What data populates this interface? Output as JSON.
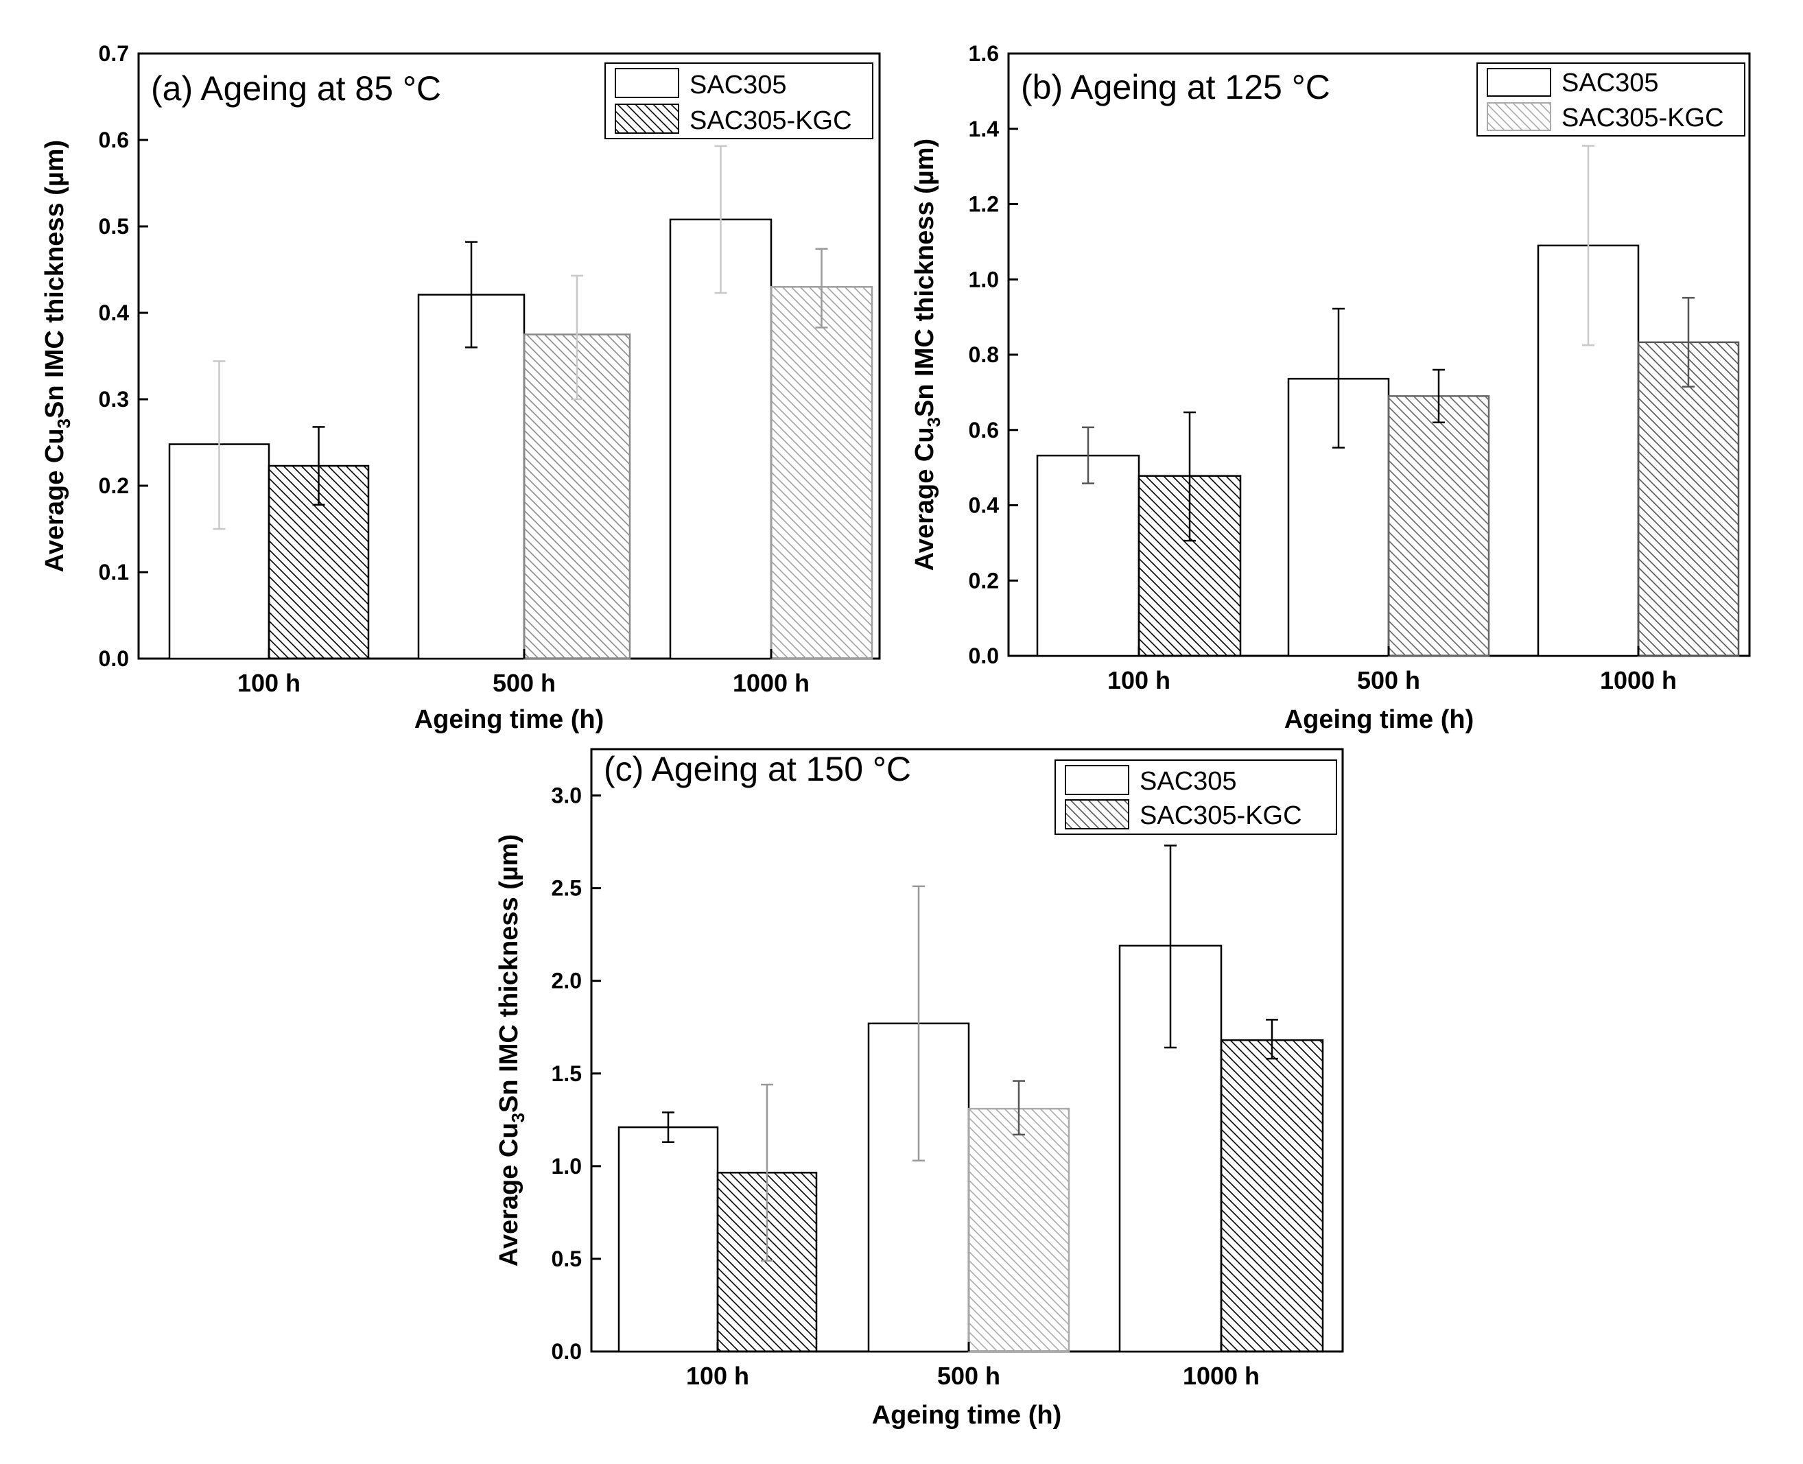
{
  "chart_data": [
    {
      "type": "bar",
      "panel": "a",
      "title": "(a)  Ageing at 85 °C",
      "xlabel": "Ageing time (h)",
      "ylabel_prefix": "Average Cu",
      "ylabel_sub": "3",
      "ylabel_suffix": "Sn IMC thickness (µm)",
      "categories": [
        "100 h",
        "500 h",
        "1000 h"
      ],
      "ylim": [
        0,
        0.7
      ],
      "yticks": [
        0.0,
        0.1,
        0.2,
        0.3,
        0.4,
        0.5,
        0.6,
        0.7
      ],
      "ytick_labels": [
        "0.0",
        "0.1",
        "0.2",
        "0.3",
        "0.4",
        "0.5",
        "0.6",
        "0.7"
      ],
      "legend_position": "top-right",
      "series": [
        {
          "name": "SAC305",
          "pattern": "none",
          "values": [
            0.248,
            0.421,
            0.508
          ],
          "err_low": [
            0.15,
            0.36,
            0.423
          ],
          "err_high": [
            0.344,
            0.482,
            0.593
          ],
          "err_colors": [
            "#c8c8c8",
            "#000000",
            "#c8c8c8"
          ]
        },
        {
          "name": "SAC305-KGC",
          "pattern": "hatch",
          "values": [
            0.223,
            0.375,
            0.43
          ],
          "err_low": [
            0.178,
            0.3,
            0.383
          ],
          "err_high": [
            0.268,
            0.443,
            0.474
          ],
          "err_colors": [
            "#000000",
            "#c8c8c8",
            "#999999"
          ],
          "hatch_shades": [
            "#000000",
            "#8a8a8a",
            "#a0a0a0"
          ]
        }
      ]
    },
    {
      "type": "bar",
      "panel": "b",
      "title": "(b) Ageing at 125 °C",
      "xlabel": "Ageing time (h)",
      "ylabel_prefix": "Average Cu",
      "ylabel_sub": "3",
      "ylabel_suffix": "Sn IMC thickness (µm)",
      "categories": [
        "100 h",
        "500 h",
        "1000 h"
      ],
      "ylim": [
        0,
        1.6
      ],
      "yticks": [
        0.0,
        0.2,
        0.4,
        0.6,
        0.8,
        1.0,
        1.2,
        1.4,
        1.6
      ],
      "ytick_labels": [
        "0.0",
        "0.2",
        "0.4",
        "0.6",
        "0.8",
        "1.0",
        "1.2",
        "1.4",
        "1.6"
      ],
      "legend_position": "top-right",
      "series": [
        {
          "name": "SAC305",
          "pattern": "none",
          "values": [
            0.532,
            0.736,
            1.09
          ],
          "err_low": [
            0.458,
            0.553,
            0.825
          ],
          "err_high": [
            0.607,
            0.922,
            1.355
          ],
          "err_colors": [
            "#555555",
            "#000000",
            "#c8c8c8"
          ]
        },
        {
          "name": "SAC305-KGC",
          "pattern": "hatch",
          "values": [
            0.478,
            0.69,
            0.833
          ],
          "err_low": [
            0.306,
            0.62,
            0.715
          ],
          "err_high": [
            0.647,
            0.76,
            0.951
          ],
          "err_colors": [
            "#000000",
            "#000000",
            "#555555"
          ],
          "hatch_shades": [
            "#000000",
            "#666666",
            "#555555"
          ]
        }
      ]
    },
    {
      "type": "bar",
      "panel": "c",
      "title": "(c) Ageing at 150 °C",
      "xlabel": "Ageing time (h)",
      "ylabel_prefix": "Average Cu",
      "ylabel_sub": "3",
      "ylabel_suffix": "Sn IMC thickness (µm)",
      "categories": [
        "100 h",
        "500 h",
        "1000 h"
      ],
      "ylim": [
        0,
        3.25
      ],
      "yticks": [
        0.0,
        0.5,
        1.0,
        1.5,
        2.0,
        2.5,
        3.0
      ],
      "ytick_labels": [
        "0.0",
        "0.5",
        "1.0",
        "1.5",
        "2.0",
        "2.5",
        "3.0"
      ],
      "legend_position": "top-right",
      "series": [
        {
          "name": "SAC305",
          "pattern": "none",
          "values": [
            1.21,
            1.77,
            2.19
          ],
          "err_low": [
            1.13,
            1.03,
            1.64
          ],
          "err_high": [
            1.29,
            2.51,
            2.73
          ],
          "err_colors": [
            "#000000",
            "#999999",
            "#000000"
          ]
        },
        {
          "name": "SAC305-KGC",
          "pattern": "hatch",
          "values": [
            0.965,
            1.31,
            1.68
          ],
          "err_low": [
            0.49,
            1.17,
            1.58
          ],
          "err_high": [
            1.44,
            1.46,
            1.79
          ],
          "err_colors": [
            "#999999",
            "#555555",
            "#000000"
          ],
          "hatch_shades": [
            "#000000",
            "#aaaaaa",
            "#000000"
          ]
        }
      ]
    }
  ]
}
